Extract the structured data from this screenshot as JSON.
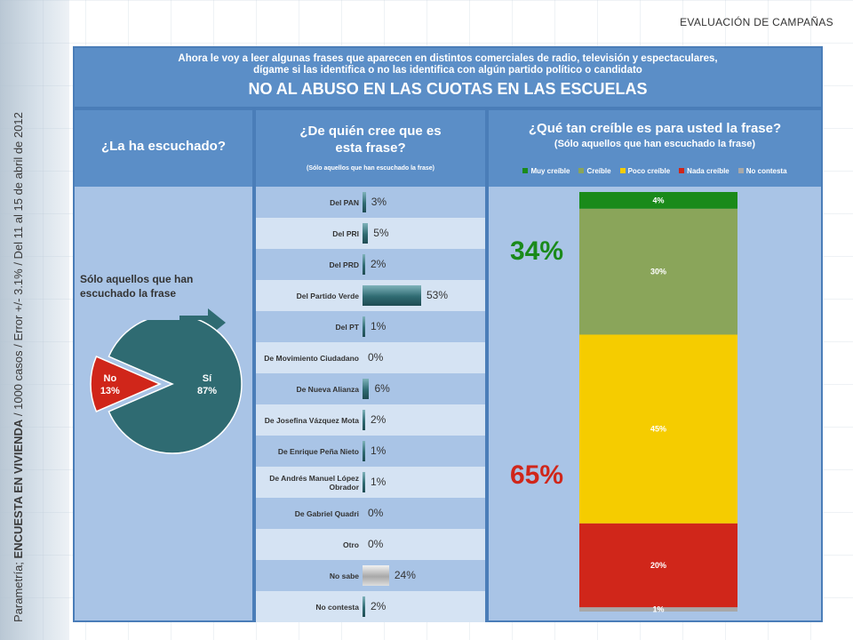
{
  "side_text": {
    "brand": "Parametría; ",
    "survey": "ENCUESTA EN VIVIENDA",
    "details": " / 1000 casos / Error +/- 3.1% / Del 11 al 15 de abril de 2012"
  },
  "campaign_title": "EVALUACIÓN DE CAMPAÑAS",
  "header": {
    "question_line1": "Ahora le voy a leer algunas frases que aparecen en distintos comerciales de radio, televisión y espectaculares,",
    "question_line2": "dígame si las identifica o no las identifica con algún partido político o candidato",
    "title": "NO AL ABUSO EN LAS CUOTAS EN LAS ESCUELAS"
  },
  "col1": {
    "heading": "¿La ha escuchado?",
    "note_line1": "Sólo aquellos que han",
    "note_line2": "escuchado la frase"
  },
  "col2": {
    "heading_line1": "¿De quién cree que es",
    "heading_line2": "esta frase?",
    "subheading": "(Sólo aquellos que han escuchado la frase)"
  },
  "col3": {
    "heading": "¿Qué tan creíble es para usted la frase?",
    "subheading": "(Sólo aquellos que han escuchado la frase)"
  },
  "colors": {
    "muy": "#1a8a1a",
    "creible": "#8aa55a",
    "poco": "#f5cc00",
    "nada": "#d0261a",
    "nc": "#a8a8a8",
    "teal": "#2f6b72",
    "accent": "#5b8ec7"
  },
  "chart_data": [
    {
      "type": "pie",
      "slices": [
        {
          "label": "Sí",
          "value": 87,
          "display": "87%",
          "color": "#2f6b72"
        },
        {
          "label": "No",
          "value": 13,
          "display": "13%",
          "color": "#d0261a"
        }
      ]
    },
    {
      "type": "bar",
      "orientation": "horizontal",
      "categories": [
        "Del PAN",
        "Del PRI",
        "Del PRD",
        "Del Partido Verde",
        "Del PT",
        "De Movimiento Ciudadano",
        "De Nueva Alianza",
        "De Josefina Vázquez Mota",
        "De Enrique Peña Nieto",
        "De Andrés Manuel López Obrador",
        "De Gabriel Quadri",
        "Otro",
        "No sabe",
        "No contesta"
      ],
      "values": [
        3,
        5,
        2,
        53,
        1,
        0,
        6,
        2,
        1,
        1,
        0,
        0,
        24,
        2
      ],
      "value_labels": [
        "3%",
        "5%",
        "2%",
        "53%",
        "1%",
        "0%",
        "6%",
        "2%",
        "1%",
        "1%",
        "0%",
        "0%",
        "24%",
        "2%"
      ]
    },
    {
      "type": "bar",
      "stacked": true,
      "series": [
        {
          "name": "Muy creíble",
          "value": 4,
          "display": "4%",
          "color": "#1a8a1a"
        },
        {
          "name": "Creíble",
          "value": 30,
          "display": "30%",
          "color": "#8aa55a"
        },
        {
          "name": "Poco creíble",
          "value": 45,
          "display": "45%",
          "color": "#f5cc00"
        },
        {
          "name": "Nada creíble",
          "value": 20,
          "display": "20%",
          "color": "#d0261a"
        },
        {
          "name": "No contesta",
          "value": 1,
          "display": "1%",
          "color": "#a8a8a8"
        }
      ],
      "annotations": [
        {
          "text": "34%",
          "color": "#1a8a1a"
        },
        {
          "text": "65%",
          "color": "#d0261a"
        }
      ]
    }
  ]
}
